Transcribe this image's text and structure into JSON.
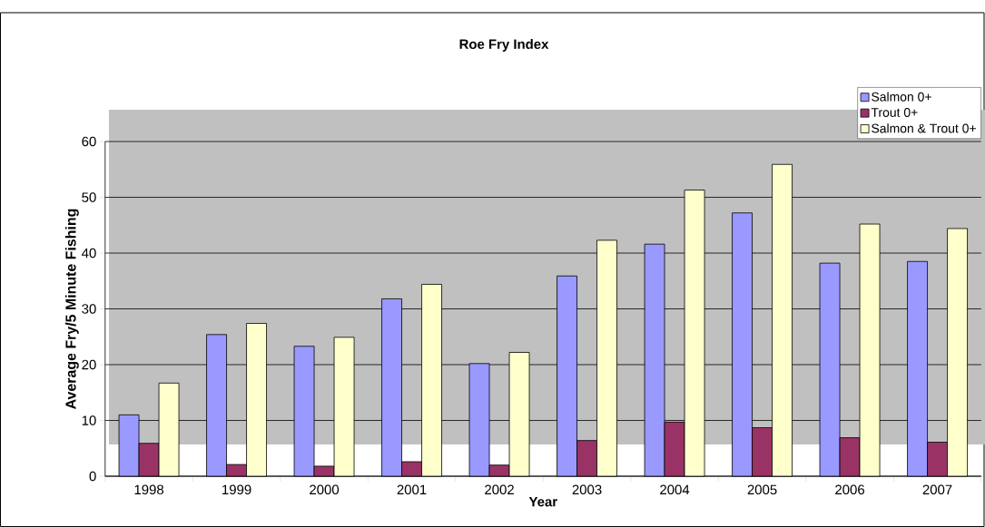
{
  "chart_data": {
    "type": "bar",
    "title": "Roe Fry Index",
    "xlabel": "Year",
    "ylabel": "Average Fry/5 Minute Fishing",
    "categories": [
      "1998",
      "1999",
      "2000",
      "2001",
      "2002",
      "2003",
      "2004",
      "2005",
      "2006",
      "2007"
    ],
    "series": [
      {
        "name": "Salmon 0+",
        "color": "#9999ff",
        "values": [
          11,
          25.4,
          23.3,
          31.8,
          20.2,
          35.9,
          41.6,
          47.2,
          38.2,
          38.5
        ]
      },
      {
        "name": "Trout 0+",
        "color": "#993366",
        "values": [
          5.9,
          2.1,
          1.8,
          2.6,
          2.0,
          6.4,
          9.7,
          8.7,
          6.9,
          6.1
        ]
      },
      {
        "name": "Salmon & Trout 0+",
        "color": "#ffffcc",
        "values": [
          16.7,
          27.4,
          24.9,
          34.4,
          22.2,
          42.3,
          51.3,
          55.9,
          45.2,
          44.4
        ]
      }
    ],
    "ylim": [
      0,
      60
    ],
    "yticks": [
      0,
      10,
      20,
      30,
      40,
      50,
      60
    ],
    "grid": "y",
    "legend": "top right"
  }
}
